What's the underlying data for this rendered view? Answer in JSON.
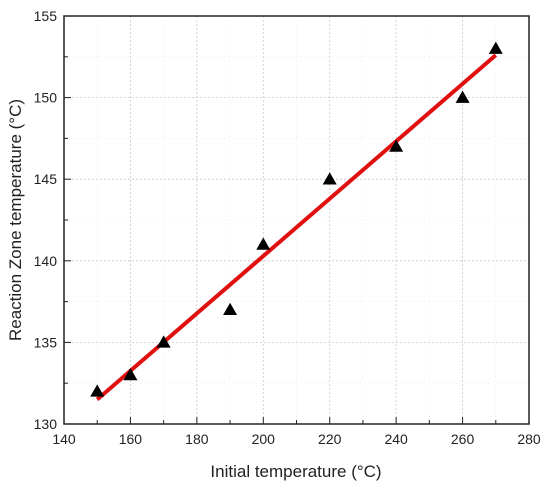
{
  "chart_data": {
    "type": "scatter",
    "xlabel": "Initial temperature (°C)",
    "ylabel": "Reaction Zone temperature (°C)",
    "xlim": [
      140,
      280
    ],
    "ylim": [
      130,
      155
    ],
    "xticks": [
      140,
      160,
      180,
      200,
      220,
      240,
      260,
      280
    ],
    "yticks": [
      130,
      135,
      140,
      145,
      150,
      155
    ],
    "grid": true,
    "series": [
      {
        "marker": "triangle",
        "color": "#000000",
        "x": [
          150,
          160,
          170,
          190,
          200,
          220,
          240,
          260,
          270
        ],
        "y": [
          132,
          133,
          135,
          137,
          141,
          145,
          147,
          150,
          153
        ]
      }
    ],
    "fit_line": {
      "color": "#e01010",
      "x": [
        150,
        270
      ],
      "y": [
        131.5,
        152.6
      ]
    }
  }
}
